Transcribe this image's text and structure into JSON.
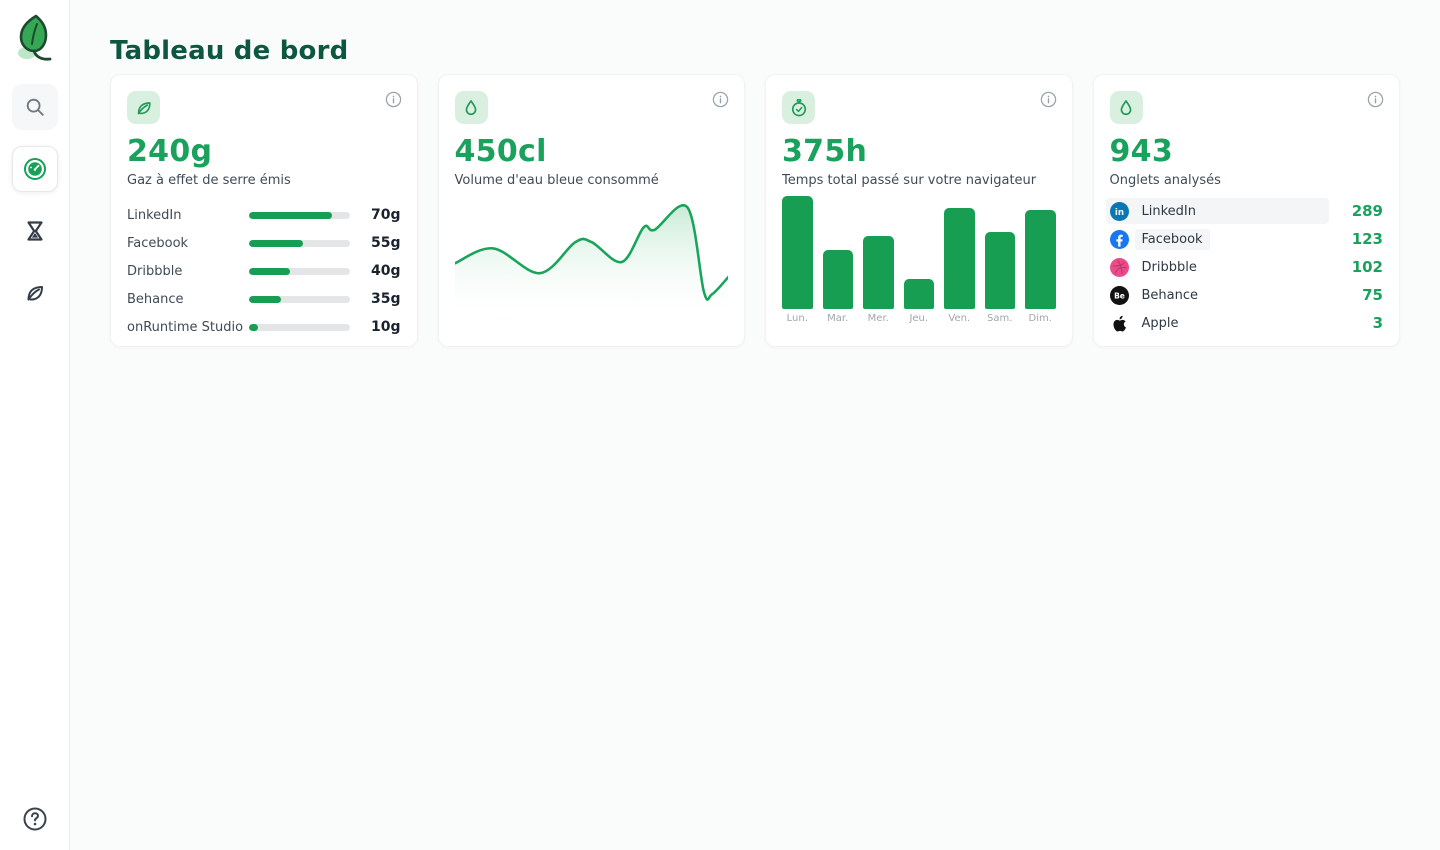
{
  "page": {
    "title": "Tableau de bord"
  },
  "sidebar": {
    "logo_icon": "leaf-logo-icon",
    "items": [
      {
        "icon": "search-icon",
        "active": false
      },
      {
        "icon": "dashboard-gauge-icon",
        "active": true
      },
      {
        "icon": "hourglass-icon",
        "active": false
      },
      {
        "icon": "leaf-icon",
        "active": false
      }
    ],
    "help_icon": "help-icon"
  },
  "cards": {
    "gas": {
      "icon": "leaf-icon",
      "value": "240g",
      "label": "Gaz à effet de serre émis",
      "rows": [
        {
          "label": "LinkedIn",
          "value": "70g",
          "bar_pct": 83
        },
        {
          "label": "Facebook",
          "value": "55g",
          "bar_pct": 54
        },
        {
          "label": "Dribbble",
          "value": "40g",
          "bar_pct": 41
        },
        {
          "label": "Behance",
          "value": "35g",
          "bar_pct": 32
        },
        {
          "label": "onRuntime Studio",
          "value": "10g",
          "bar_pct": 9
        }
      ]
    },
    "water": {
      "icon": "water-drop-icon",
      "value": "450cl",
      "label": "Volume d'eau bleue consommé"
    },
    "time": {
      "icon": "stopwatch-icon",
      "value": "375h",
      "label": "Temps total passé sur votre navigateur",
      "days": [
        "Lun.",
        "Mar.",
        "Mer.",
        "Jeu.",
        "Ven.",
        "Sam.",
        "Dim."
      ],
      "bar_pct": [
        100,
        52,
        65,
        27,
        89,
        68,
        88
      ]
    },
    "tabs": {
      "icon": "water-drop-icon",
      "value": "943",
      "label": "Onglets analysés",
      "rows": [
        {
          "icon": "linkedin-icon",
          "label": "LinkedIn",
          "value": "289",
          "highlighted": true
        },
        {
          "icon": "facebook-icon",
          "label": "Facebook",
          "value": "123",
          "label_highlighted": true
        },
        {
          "icon": "dribbble-icon",
          "label": "Dribbble",
          "value": "102"
        },
        {
          "icon": "behance-icon",
          "label": "Behance",
          "value": "75"
        },
        {
          "icon": "apple-icon",
          "label": "Apple",
          "value": "3"
        }
      ]
    }
  },
  "chart_data": [
    {
      "type": "area",
      "title": "Volume d'eau bleue consommé",
      "x_pct": [
        0,
        14,
        31,
        44,
        50,
        61,
        69,
        73,
        85,
        91,
        94,
        100
      ],
      "y_pct": [
        49,
        61,
        41,
        66,
        66,
        50,
        78,
        76,
        94,
        26,
        24,
        38
      ],
      "line_color": "#18a45a",
      "fill": "green gradient fading to white",
      "note": "no axes or tick labels shown; y values are % of chart height estimated from pixels"
    },
    {
      "type": "bar",
      "title": "Temps total passé sur votre navigateur",
      "categories": [
        "Lun.",
        "Mar.",
        "Mer.",
        "Jeu.",
        "Ven.",
        "Sam.",
        "Dim."
      ],
      "values_pct_of_max": [
        100,
        52,
        65,
        27,
        89,
        68,
        88
      ],
      "bar_color": "#179e52",
      "note": "no y-axis shown; values are bar heights as % of tallest bar (Lun.)"
    }
  ],
  "colors": {
    "accent_green": "#1aa15c",
    "chart_green": "#179e52",
    "title_dark_green": "#0d5741",
    "chip_bg": "#d9efe0",
    "bar_track": "#e4e5e7",
    "muted_text": "#a0a6ad"
  }
}
